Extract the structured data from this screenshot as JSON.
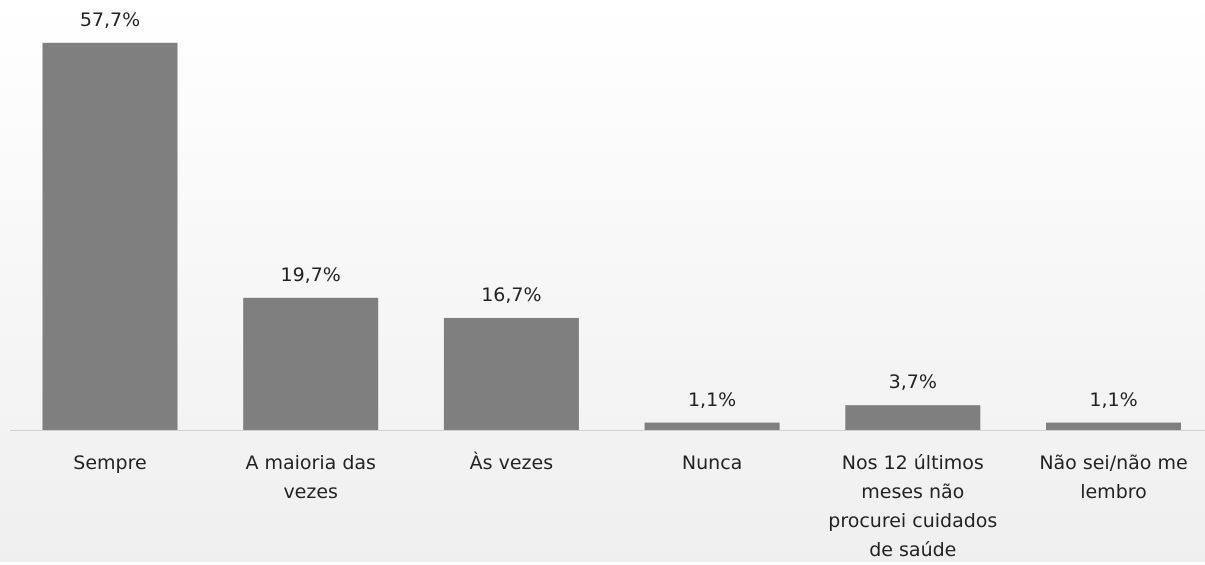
{
  "chart_data": {
    "type": "bar",
    "categories": [
      "Sempre",
      "A maioria das vezes",
      "Às vezes",
      "Nunca",
      "Nos 12 últimos meses não procurei cuidados de saúde",
      "Não sei/não me lembro"
    ],
    "values": [
      57.7,
      19.7,
      16.7,
      1.1,
      3.7,
      1.1
    ],
    "value_labels": [
      "57,7%",
      "19,7%",
      "16,7%",
      "1,1%",
      "3,7%",
      "1,1%"
    ],
    "color": "#7f7f7f"
  }
}
